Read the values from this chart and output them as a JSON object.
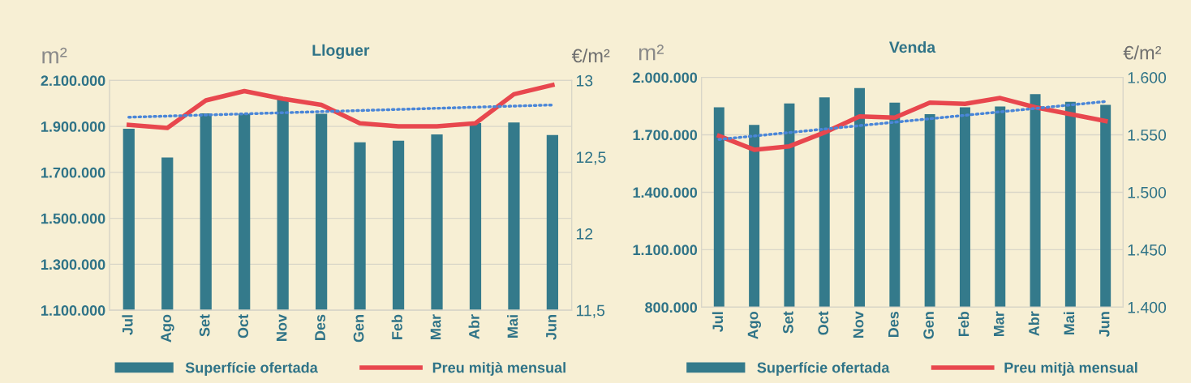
{
  "chart_data": [
    {
      "type": "bar",
      "title": "Lloguer",
      "ylabel": "m²",
      "y2label": "€/m²",
      "categories": [
        "Jul",
        "Ago",
        "Set",
        "Oct",
        "Nov",
        "Des",
        "Gen",
        "Feb",
        "Mar",
        "Abr",
        "Mai",
        "Jun"
      ],
      "series": [
        {
          "name": "Superfície ofertada",
          "color": "#347a8b",
          "values": [
            1890000,
            1765000,
            1957000,
            1955000,
            2019000,
            1955000,
            1831000,
            1838000,
            1865000,
            1914000,
            1917000,
            1862000
          ]
        },
        {
          "type": "line",
          "name": "Preu mitjà mensual",
          "color": "#e8474e",
          "axis": "y2",
          "values": [
            12.71,
            12.69,
            12.87,
            12.93,
            12.88,
            12.84,
            12.72,
            12.7,
            12.7,
            12.72,
            12.91,
            12.97
          ]
        },
        {
          "type": "line",
          "color": "#4a86d8",
          "axis": "y2",
          "line_style": "dotted",
          "x": [
            "Jul",
            "Jun"
          ],
          "values": [
            12.76,
            12.84
          ]
        }
      ],
      "ylim": [
        1100000,
        2100000
      ],
      "yticks": [
        {
          "value": 1100000,
          "label": "1.100.000"
        },
        {
          "value": 1300000,
          "label": "1.300.000"
        },
        {
          "value": 1500000,
          "label": "1.500.000"
        },
        {
          "value": 1700000,
          "label": "1.700.000"
        },
        {
          "value": 1900000,
          "label": "1.900.000"
        },
        {
          "value": 2100000,
          "label": "2.100.000"
        }
      ],
      "y2lim": [
        11.5,
        13
      ],
      "y2ticks": [
        {
          "value": 11.5,
          "label": "11,5"
        },
        12,
        {
          "value": 12.5,
          "label": "12,5"
        },
        13
      ],
      "grid": "y",
      "legend": "bottom"
    },
    {
      "type": "bar",
      "title": "Venda",
      "ylabel": "m²",
      "y2label": "€/m²",
      "categories": [
        "Jul",
        "Ago",
        "Set",
        "Oct",
        "Nov",
        "Des",
        "Gen",
        "Feb",
        "Mar",
        "Abr",
        "Mai",
        "Jun"
      ],
      "series": [
        {
          "name": "Superfície ofertada",
          "color": "#347a8b",
          "values": [
            1844000,
            1752000,
            1864000,
            1896000,
            1944000,
            1868000,
            1808000,
            1844000,
            1848000,
            1912000,
            1872000,
            1856000
          ]
        },
        {
          "type": "line",
          "name": "Preu mitjà mensual",
          "color": "#e8474e",
          "axis": "y2",
          "values": [
            1549,
            1537,
            1540,
            1552,
            1566,
            1565,
            1578,
            1577,
            1582,
            1574,
            1568,
            1562
          ]
        },
        {
          "type": "line",
          "color": "#4a86d8",
          "axis": "y2",
          "line_style": "dotted",
          "x": [
            "Jul",
            "Jun"
          ],
          "values": [
            1546,
            1579
          ]
        }
      ],
      "ylim": [
        800000,
        2000000
      ],
      "yticks": [
        {
          "value": 800000,
          "label": "800.000"
        },
        {
          "value": 1100000,
          "label": "1.100.000"
        },
        {
          "value": 1400000,
          "label": "1.400.000"
        },
        {
          "value": 1700000,
          "label": "1.700.000"
        },
        {
          "value": 2000000,
          "label": "2.000.000"
        }
      ],
      "y2lim": [
        1400,
        1600
      ],
      "y2ticks": [
        {
          "value": 1400,
          "label": "1.400"
        },
        {
          "value": 1450,
          "label": "1.450"
        },
        {
          "value": 1500,
          "label": "1.500"
        },
        {
          "value": 1550,
          "label": "1.550"
        },
        {
          "value": 1600,
          "label": "1.600"
        }
      ],
      "grid": "y",
      "legend": "bottom"
    }
  ]
}
